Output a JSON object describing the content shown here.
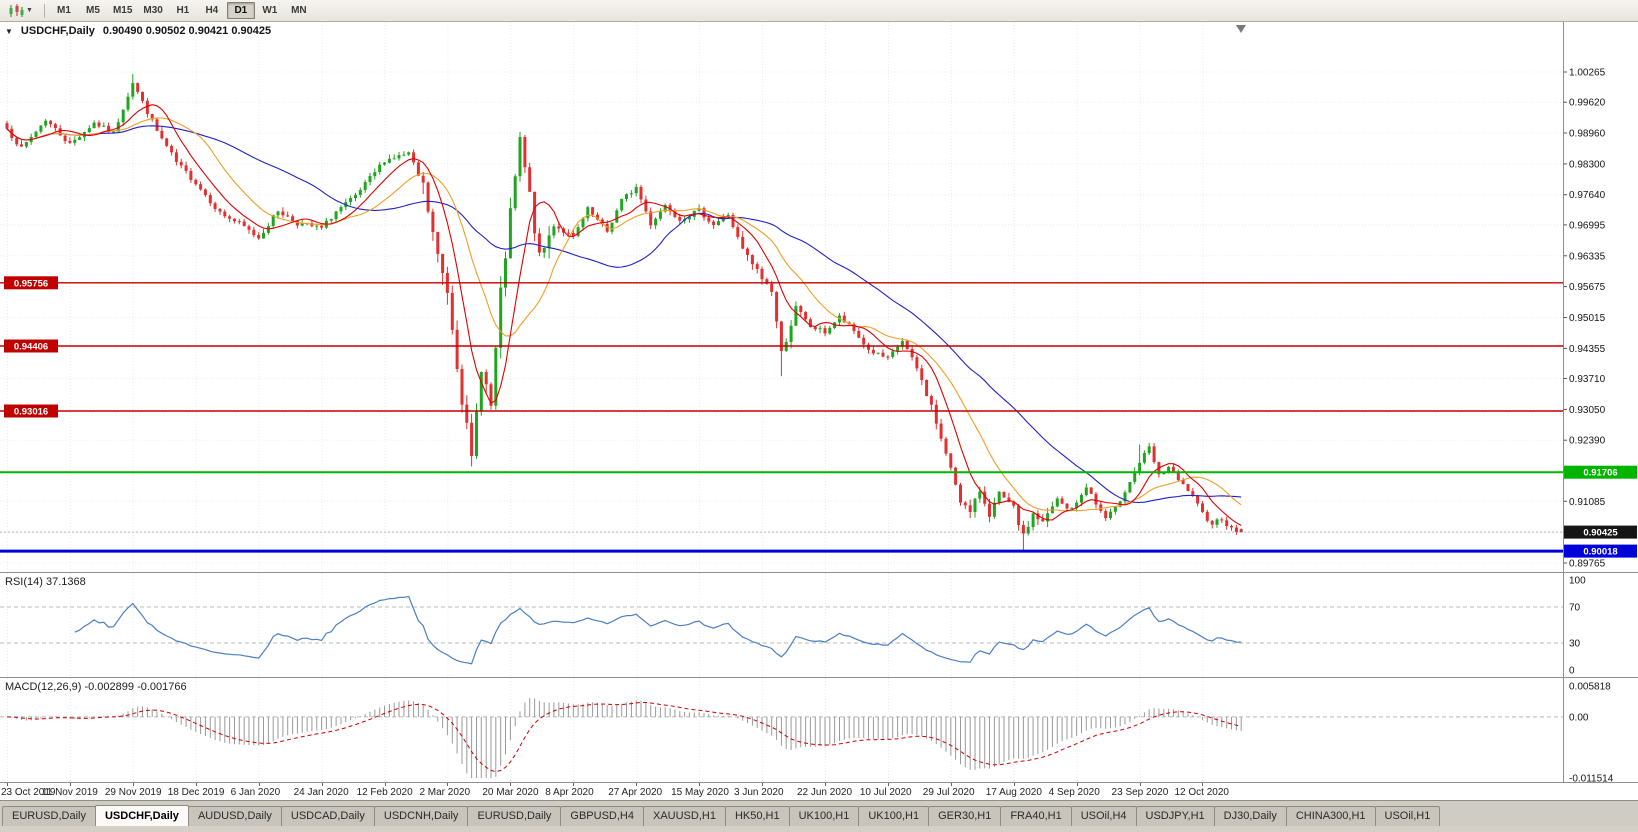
{
  "toolbar": {
    "chart_type_icon": "candlestick-chart-icon",
    "timeframes": [
      "M1",
      "M5",
      "M15",
      "M30",
      "H1",
      "H4",
      "D1",
      "W1",
      "MN"
    ],
    "selected_timeframe": "D1"
  },
  "main_chart": {
    "title": "USDCHF,Daily",
    "ohlc_text": "0.90490 0.90502 0.90421 0.90425",
    "bid": "0.90425",
    "price_scale": [
      "1.00265",
      "0.99620",
      "0.98960",
      "0.98300",
      "0.97640",
      "0.96995",
      "0.96335",
      "0.95675",
      "0.95015",
      "0.94355",
      "0.93710",
      "0.93050",
      "0.92390",
      "0.91730",
      "0.91085",
      "0.90425",
      "0.89765"
    ],
    "hlines": [
      {
        "price": 0.95756,
        "label": "0.95756",
        "color": "#C00000",
        "tag_side": "left",
        "width": 1.4
      },
      {
        "price": 0.94406,
        "label": "0.94406",
        "color": "#C00000",
        "tag_side": "left",
        "width": 1.4
      },
      {
        "price": 0.93016,
        "label": "0.93016",
        "color": "#C00000",
        "tag_side": "left",
        "width": 1.4
      },
      {
        "price": 0.91706,
        "label": "0.91706",
        "color": "#00B400",
        "tag_side": "right",
        "width": 2
      },
      {
        "price": 0.90018,
        "label": "0.90018",
        "color": "#0000D8",
        "tag_side": "right",
        "width": 3
      }
    ],
    "colors": {
      "candle_up": "#1FA51F",
      "candle_down": "#E03030",
      "ma_fast": "#E00000",
      "ma_mid": "#EF9F26",
      "ma_slow": "#2020C8",
      "bid_tag": "#151515"
    }
  },
  "rsi_panel": {
    "label": "RSI(14) 37.1368",
    "scale": [
      "100",
      "70",
      "30",
      "0"
    ],
    "levels": [
      70,
      30
    ],
    "line_color": "#4A7FC1"
  },
  "macd_panel": {
    "label": "MACD(12,26,9) -0.002899 -0.001766",
    "scale": [
      "0.005818",
      "0.00",
      "-0.011514"
    ],
    "hist_color": "#999999",
    "signal_color": "#CC0000"
  },
  "time_axis": {
    "labels": [
      {
        "i": 0,
        "t": "23 Oct 2019"
      },
      {
        "i": 13,
        "t": "11 Nov 2019"
      },
      {
        "i": 26,
        "t": "29 Nov 2019"
      },
      {
        "i": 39,
        "t": "18 Dec 2019"
      },
      {
        "i": 52,
        "t": "6 Jan 2020"
      },
      {
        "i": 65,
        "t": "24 Jan 2020"
      },
      {
        "i": 78,
        "t": "12 Feb 2020"
      },
      {
        "i": 91,
        "t": "2 Mar 2020"
      },
      {
        "i": 104,
        "t": "20 Mar 2020"
      },
      {
        "i": 117,
        "t": "8 Apr 2020"
      },
      {
        "i": 130,
        "t": "27 Apr 2020"
      },
      {
        "i": 143,
        "t": "15 May 2020"
      },
      {
        "i": 156,
        "t": "3 Jun 2020"
      },
      {
        "i": 169,
        "t": "22 Jun 2020"
      },
      {
        "i": 182,
        "t": "10 Jul 2020"
      },
      {
        "i": 195,
        "t": "29 Jul 2020"
      },
      {
        "i": 208,
        "t": "17 Aug 2020"
      },
      {
        "i": 221,
        "t": "4 Sep 2020"
      },
      {
        "i": 234,
        "t": "23 Sep 2020"
      },
      {
        "i": 247,
        "t": "12 Oct 2020"
      }
    ]
  },
  "tabs": {
    "active_index": 1,
    "items": [
      "EURUSD,Daily",
      "USDCHF,Daily",
      "AUDUSD,Daily",
      "USDCAD,Daily",
      "USDCNH,Daily",
      "EURUSD,Daily",
      "GBPUSD,H4",
      "XAUUSD,H1",
      "HK50,H1",
      "UK100,H1",
      "UK100,H1",
      "GER30,H1",
      "FRA40,H1",
      "USOil,H4",
      "USDJPY,H1",
      "DJ30,Daily",
      "CHINA300,H1",
      "USOil,H1"
    ]
  },
  "chart_data": {
    "type": "candlestick",
    "symbol": "USDCHF",
    "period": "Daily",
    "date_range": [
      "23 Oct 2019",
      "12 Oct 2020"
    ],
    "num_candles": 256,
    "last_candle": {
      "open": 0.9049,
      "high": 0.90502,
      "low": 0.90421,
      "close": 0.90425
    },
    "y_range": [
      0.8955,
      1.0045
    ],
    "price_axis": {
      "top_label": 1.00265,
      "step": 0.0066
    },
    "horizontal_levels": [
      0.95756,
      0.94406,
      0.93016,
      0.91706,
      0.90018
    ],
    "anchor_closes": [
      [
        0,
        0.9905
      ],
      [
        3,
        0.9862
      ],
      [
        8,
        0.9925
      ],
      [
        13,
        0.9872
      ],
      [
        18,
        0.9918
      ],
      [
        22,
        0.9895
      ],
      [
        26,
        1.0005
      ],
      [
        28,
        0.9962
      ],
      [
        31,
        0.99
      ],
      [
        35,
        0.9833
      ],
      [
        39,
        0.979
      ],
      [
        44,
        0.9725
      ],
      [
        48,
        0.9702
      ],
      [
        52,
        0.9672
      ],
      [
        56,
        0.973
      ],
      [
        60,
        0.9703
      ],
      [
        65,
        0.9692
      ],
      [
        68,
        0.9728
      ],
      [
        72,
        0.976
      ],
      [
        78,
        0.9838
      ],
      [
        83,
        0.9852
      ],
      [
        86,
        0.978
      ],
      [
        89,
        0.963
      ],
      [
        91,
        0.956
      ],
      [
        94,
        0.933
      ],
      [
        96,
        0.9195
      ],
      [
        98,
        0.94
      ],
      [
        100,
        0.931
      ],
      [
        102,
        0.955
      ],
      [
        104,
        0.972
      ],
      [
        106,
        0.9878
      ],
      [
        108,
        0.976
      ],
      [
        110,
        0.9625
      ],
      [
        113,
        0.97
      ],
      [
        117,
        0.9672
      ],
      [
        120,
        0.9732
      ],
      [
        124,
        0.9685
      ],
      [
        127,
        0.9752
      ],
      [
        130,
        0.978
      ],
      [
        133,
        0.9702
      ],
      [
        136,
        0.9742
      ],
      [
        139,
        0.9712
      ],
      [
        143,
        0.973
      ],
      [
        146,
        0.97
      ],
      [
        149,
        0.9722
      ],
      [
        152,
        0.9645
      ],
      [
        156,
        0.9585
      ],
      [
        158,
        0.956
      ],
      [
        160,
        0.9425
      ],
      [
        163,
        0.952
      ],
      [
        166,
        0.9482
      ],
      [
        169,
        0.947
      ],
      [
        172,
        0.9502
      ],
      [
        175,
        0.9472
      ],
      [
        178,
        0.9432
      ],
      [
        182,
        0.9412
      ],
      [
        185,
        0.9452
      ],
      [
        188,
        0.9392
      ],
      [
        191,
        0.9312
      ],
      [
        194,
        0.9205
      ],
      [
        195,
        0.9182
      ],
      [
        197,
        0.9112
      ],
      [
        199,
        0.9082
      ],
      [
        201,
        0.9132
      ],
      [
        203,
        0.9082
      ],
      [
        205,
        0.9122
      ],
      [
        208,
        0.9092
      ],
      [
        210,
        0.9032
      ],
      [
        212,
        0.9082
      ],
      [
        214,
        0.9062
      ],
      [
        217,
        0.9112
      ],
      [
        219,
        0.9092
      ],
      [
        221,
        0.9102
      ],
      [
        223,
        0.9142
      ],
      [
        225,
        0.9102
      ],
      [
        227,
        0.9072
      ],
      [
        229,
        0.9092
      ],
      [
        231,
        0.9132
      ],
      [
        234,
        0.9192
      ],
      [
        236,
        0.9222
      ],
      [
        238,
        0.9162
      ],
      [
        240,
        0.9182
      ],
      [
        242,
        0.9152
      ],
      [
        244,
        0.9132
      ],
      [
        247,
        0.9082
      ],
      [
        249,
        0.9062
      ],
      [
        251,
        0.9072
      ],
      [
        253,
        0.9048
      ],
      [
        255,
        0.90425
      ]
    ],
    "wick_highs": [
      [
        26,
        1.0022
      ],
      [
        106,
        0.989
      ],
      [
        234,
        0.923
      ]
    ],
    "wick_lows": [
      [
        96,
        0.9183
      ],
      [
        160,
        0.9376
      ],
      [
        210,
        0.8999
      ]
    ],
    "volatility_zones": [
      {
        "from": 86,
        "to": 112,
        "amp": 0.0026
      },
      {
        "from": 152,
        "to": 164,
        "amp": 0.0015
      },
      {
        "from": 188,
        "to": 216,
        "amp": 0.0013
      }
    ],
    "base_volatility": 0.0009,
    "moving_averages": [
      {
        "period": 8,
        "color": "#E00000"
      },
      {
        "period": 17,
        "color": "#EF9F26"
      },
      {
        "period": 40,
        "color": "#2020C8"
      }
    ],
    "indicators": [
      {
        "name": "RSI",
        "params": [
          14
        ],
        "current": 37.1368
      },
      {
        "name": "MACD",
        "params": [
          12,
          26,
          9
        ],
        "current_macd": -0.002899,
        "current_signal": -0.001766
      }
    ]
  }
}
